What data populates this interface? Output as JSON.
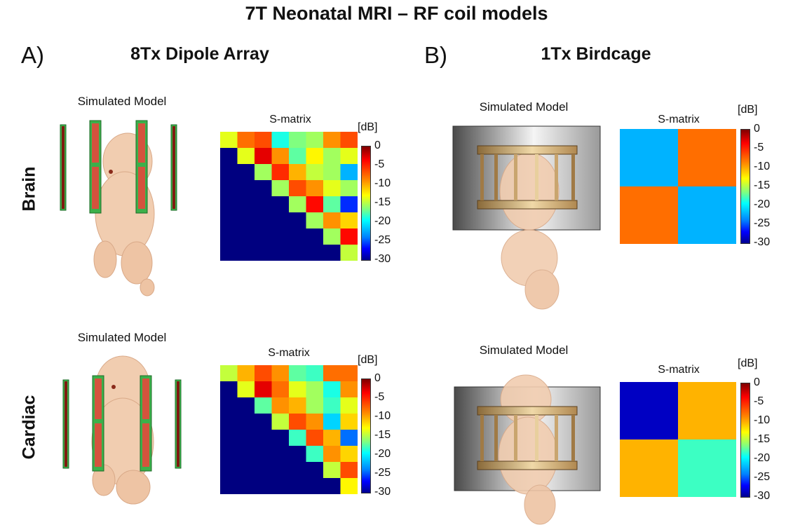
{
  "title": "7T Neonatal MRI – RF coil models",
  "panels": [
    {
      "letter": "A)",
      "title": "8Tx Dipole Array"
    },
    {
      "letter": "B)",
      "title": "1Tx Birdcage"
    }
  ],
  "rows": [
    "Brain",
    "Cardiac"
  ],
  "labels": {
    "simulated_model": "Simulated Model",
    "s_matrix": "S-matrix",
    "unit": "[dB]"
  },
  "colorbar": {
    "ticks": [
      "0",
      "-5",
      "-10",
      "-15",
      "-20",
      "-25",
      "-30"
    ],
    "min": -30,
    "max": 0
  },
  "colors": {
    "dark_red": "#7f0000",
    "coil_green": "#3cb04a",
    "coil_red": "#d4533d",
    "skin": "#f1cdb0"
  },
  "chart_data": [
    {
      "type": "heatmap",
      "name": "A-Brain",
      "values": [
        [
          -12,
          -7,
          -6,
          -18,
          -15,
          -14,
          -8,
          -6
        ],
        [
          -30,
          -12,
          -3,
          -8,
          -16,
          -11,
          -14,
          -12
        ],
        [
          -30,
          -30,
          -14,
          -5,
          -9,
          -13,
          -14,
          -21
        ],
        [
          -30,
          -30,
          -30,
          -14,
          -6,
          -8,
          -12,
          -14
        ],
        [
          -30,
          -30,
          -30,
          -30,
          -14,
          -4,
          -16,
          -25
        ],
        [
          -30,
          -30,
          -30,
          -30,
          -30,
          -14,
          -8,
          -10
        ],
        [
          -30,
          -30,
          -30,
          -30,
          -30,
          -30,
          -14,
          -4
        ],
        [
          -30,
          -30,
          -30,
          -30,
          -30,
          -30,
          -30,
          -13
        ]
      ]
    },
    {
      "type": "heatmap",
      "name": "B-Brain",
      "values": [
        [
          -21,
          -7
        ],
        [
          -7,
          -21
        ]
      ]
    },
    {
      "type": "heatmap",
      "name": "A-Cardiac",
      "values": [
        [
          -13,
          -9,
          -6,
          -8,
          -16,
          -17,
          -7,
          -7
        ],
        [
          -30,
          -12,
          -3,
          -7,
          -12,
          -14,
          -18,
          -8
        ],
        [
          -30,
          -30,
          -16,
          -8,
          -9,
          -14,
          -17,
          -12
        ],
        [
          -30,
          -30,
          -30,
          -13,
          -6,
          -8,
          -20,
          -10
        ],
        [
          -30,
          -30,
          -30,
          -30,
          -17,
          -6,
          -9,
          -23
        ],
        [
          -30,
          -30,
          -30,
          -30,
          -30,
          -17,
          -8,
          -10
        ],
        [
          -30,
          -30,
          -30,
          -30,
          -30,
          -30,
          -13,
          -6
        ],
        [
          -30,
          -30,
          -30,
          -30,
          -30,
          -30,
          -30,
          -11
        ]
      ]
    },
    {
      "type": "heatmap",
      "name": "B-Cardiac",
      "values": [
        [
          -28,
          -9
        ],
        [
          -9,
          -17
        ]
      ]
    }
  ]
}
